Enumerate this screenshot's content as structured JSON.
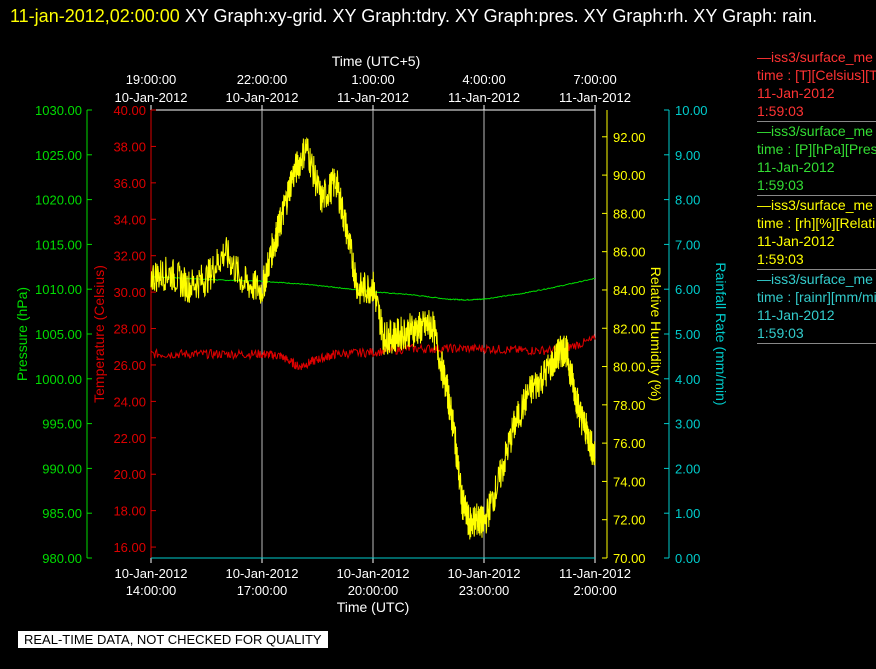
{
  "header": {
    "datetime": "11-jan-2012,02:00:00",
    "title": "XY Graph:xy-grid.  XY Graph:tdry.  XY Graph:pres.  XY Graph:rh.  XY Graph: rain."
  },
  "footer": {
    "notice": "REAL-TIME DATA, NOT CHECKED FOR QUALITY"
  },
  "colors": {
    "pressure": "#00dd00",
    "temperature": "#dd0000",
    "humidity": "#ffff00",
    "rain": "#00cccc",
    "grid": "#bbbbbb"
  },
  "legend": [
    {
      "color": "#ff3333",
      "lines": [
        "—iss3/surface_me",
        "time : [T][Celsius][T",
        "11-Jan-2012",
        "1:59:03"
      ]
    },
    {
      "color": "#33dd33",
      "lines": [
        "—iss3/surface_me",
        "time : [P][hPa][Pres",
        "11-Jan-2012",
        "1:59:03"
      ]
    },
    {
      "color": "#ffff00",
      "lines": [
        "—iss3/surface_me",
        "time : [rh][%][Relati",
        "11-Jan-2012",
        "1:59:03"
      ]
    },
    {
      "color": "#33cccc",
      "lines": [
        "—iss3/surface_me",
        "time : [rainr][mm/mi",
        "11-Jan-2012",
        "1:59:03"
      ]
    }
  ],
  "chart_data": {
    "type": "line",
    "top_axis": {
      "label": "Time (UTC+5)",
      "ticks": [
        {
          "time": "19:00:00",
          "date": "10-Jan-2012"
        },
        {
          "time": "22:00:00",
          "date": "10-Jan-2012"
        },
        {
          "time": "1:00:00",
          "date": "11-Jan-2012"
        },
        {
          "time": "4:00:00",
          "date": "11-Jan-2012"
        },
        {
          "time": "7:00:00",
          "date": "11-Jan-2012"
        }
      ]
    },
    "bottom_axis": {
      "label": "Time (UTC)",
      "ticks": [
        {
          "date": "10-Jan-2012",
          "time": "14:00:00"
        },
        {
          "date": "10-Jan-2012",
          "time": "17:00:00"
        },
        {
          "date": "10-Jan-2012",
          "time": "20:00:00"
        },
        {
          "date": "10-Jan-2012",
          "time": "23:00:00"
        },
        {
          "date": "11-Jan-2012",
          "time": "2:00:00"
        }
      ],
      "range_hours_since_14utc": [
        0,
        12
      ]
    },
    "pressure_axis": {
      "label": "Pressure (hPa)",
      "ylim": [
        980,
        1030
      ],
      "ticks": [
        "1030.00",
        "1025.00",
        "1020.00",
        "1015.00",
        "1010.00",
        "1005.00",
        "1000.00",
        "995.00",
        "990.00",
        "985.00",
        "980.00"
      ]
    },
    "temperature_axis": {
      "label": "Temperature (Celsius)",
      "ylim": [
        15.4,
        40
      ],
      "ticks": [
        "40.00",
        "38.00",
        "36.00",
        "34.00",
        "32.00",
        "30.00",
        "28.00",
        "26.00",
        "24.00",
        "22.00",
        "20.00",
        "18.00",
        "16.00"
      ]
    },
    "humidity_axis": {
      "label": "Relative Humidity (%)",
      "ylim": [
        70,
        93.4
      ],
      "ticks": [
        "92.00",
        "90.00",
        "88.00",
        "86.00",
        "84.00",
        "82.00",
        "80.00",
        "78.00",
        "76.00",
        "74.00",
        "72.00",
        "70.00"
      ]
    },
    "rain_axis": {
      "label": "Rainfall Rate (mm/min)",
      "ylim": [
        0,
        10
      ],
      "ticks": [
        "10.00",
        "9.00",
        "8.00",
        "7.00",
        "6.00",
        "5.00",
        "4.00",
        "3.00",
        "2.00",
        "1.00",
        "0.00"
      ]
    },
    "series": [
      {
        "name": "Pressure",
        "axis": "pressure",
        "x": [
          0,
          1,
          2,
          3,
          4,
          5,
          6,
          7,
          8,
          8.5,
          9,
          10,
          11,
          12
        ],
        "y": [
          1011.4,
          1011.2,
          1011.0,
          1010.9,
          1010.6,
          1010.2,
          1009.7,
          1009.4,
          1008.9,
          1008.8,
          1008.9,
          1009.5,
          1010.3,
          1011.2
        ]
      },
      {
        "name": "Temperature",
        "axis": "temperature",
        "x": [
          0,
          1,
          2,
          3,
          3.5,
          4,
          4.5,
          5,
          6,
          7,
          8,
          9,
          10,
          11,
          12
        ],
        "y": [
          26.6,
          26.6,
          26.6,
          26.6,
          26.5,
          25.9,
          26.3,
          26.6,
          26.7,
          26.9,
          26.9,
          26.9,
          26.8,
          26.8,
          27.4
        ]
      },
      {
        "name": "Relative Humidity",
        "axis": "humidity",
        "x": [
          0,
          0.5,
          1,
          1.5,
          2,
          2.5,
          3,
          3.3,
          3.5,
          3.8,
          4.2,
          4.6,
          5,
          5.3,
          5.6,
          6,
          6.3,
          6.6,
          7,
          7.3,
          7.6,
          8,
          8.2,
          8.4,
          8.6,
          8.8,
          9,
          9.4,
          9.8,
          10.2,
          10.6,
          11,
          11.2,
          11.4,
          11.6,
          11.8,
          12
        ],
        "y": [
          84.7,
          84.9,
          84.2,
          84.6,
          86.0,
          84.4,
          84.0,
          86.3,
          87.5,
          89.8,
          91.5,
          88.7,
          89.7,
          87.0,
          84.0,
          84.2,
          81.5,
          81.6,
          81.9,
          82.0,
          82.2,
          78.8,
          76.5,
          73.0,
          71.8,
          72.0,
          71.8,
          74.0,
          76.8,
          78.6,
          79.5,
          80.6,
          81.0,
          79.2,
          77.5,
          76.5,
          75.2
        ]
      },
      {
        "name": "Rainfall Rate",
        "axis": "rain",
        "x": [
          0,
          12
        ],
        "y": [
          0.0,
          0.0
        ]
      }
    ]
  }
}
